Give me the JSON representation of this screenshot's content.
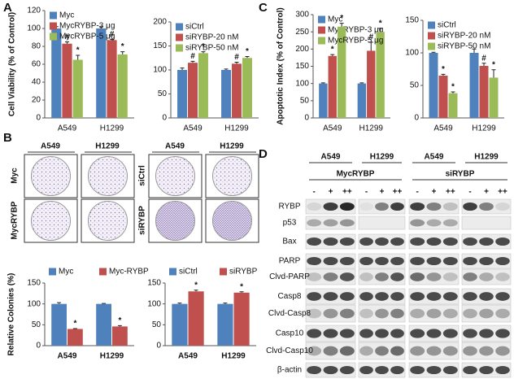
{
  "panel_labels": [
    "A",
    "B",
    "C",
    "D"
  ],
  "chart_data": [
    {
      "type": "bar",
      "ylabel": "Cell Viability (% of Control)",
      "categories": [
        "A549",
        "H1299"
      ],
      "series": [
        {
          "name": "Myc",
          "color": "#4f81bd",
          "values": [
            100,
            100
          ],
          "errors": [
            2,
            2
          ],
          "annotations": [
            null,
            null
          ]
        },
        {
          "name": "MycRYBP-3 μg",
          "color": "#c0504d",
          "values": [
            83,
            87
          ],
          "errors": [
            2,
            1
          ],
          "annotations": [
            "#",
            "#"
          ]
        },
        {
          "name": "MycRYBP-5 μg",
          "color": "#9bbb59",
          "values": [
            65,
            71
          ],
          "errors": [
            5,
            3
          ],
          "annotations": [
            "*",
            "*"
          ]
        }
      ],
      "ylim": [
        0,
        120
      ],
      "yticks": [
        0,
        20,
        40,
        60,
        80,
        100,
        120
      ],
      "legend": "upper left"
    },
    {
      "type": "bar",
      "categories": [
        "A549",
        "H1299"
      ],
      "series": [
        {
          "name": "siCtrl",
          "color": "#4f81bd",
          "values": [
            100,
            100
          ],
          "errors": [
            4,
            2
          ],
          "annotations": [
            null,
            null
          ]
        },
        {
          "name": "siRYBP-20 nM",
          "color": "#c0504d",
          "values": [
            115,
            113
          ],
          "errors": [
            3,
            3
          ],
          "annotations": [
            "#",
            "#"
          ]
        },
        {
          "name": "siRYBP-50 nM",
          "color": "#9bbb59",
          "values": [
            135,
            125
          ],
          "errors": [
            3,
            3
          ],
          "annotations": [
            "*",
            "*"
          ]
        }
      ],
      "ylim": [
        0,
        200
      ],
      "yticks": [
        0,
        50,
        100,
        150,
        200
      ],
      "legend": "upper left"
    },
    {
      "type": "bar",
      "ylabel": "Apoptotic Index (% of Control)",
      "categories": [
        "A549",
        "H1299"
      ],
      "series": [
        {
          "name": "Myc",
          "color": "#4f81bd",
          "values": [
            100,
            100
          ],
          "errors": [
            2,
            2
          ],
          "annotations": [
            null,
            null
          ]
        },
        {
          "name": "MycRYBP-3 μg",
          "color": "#c0504d",
          "values": [
            180,
            195
          ],
          "errors": [
            4,
            25
          ],
          "annotations": [
            "*",
            "#"
          ]
        },
        {
          "name": "MycRYBP-5 μg",
          "color": "#9bbb59",
          "values": [
            265,
            250
          ],
          "errors": [
            10,
            10
          ],
          "annotations": [
            "*",
            "*"
          ]
        }
      ],
      "ylim": [
        0,
        300
      ],
      "yticks": [
        0,
        50,
        100,
        150,
        200,
        250,
        300
      ],
      "legend": "upper left"
    },
    {
      "type": "bar",
      "categories": [
        "A549",
        "H1299"
      ],
      "series": [
        {
          "name": "siCtrl",
          "color": "#4f81bd",
          "values": [
            100,
            100
          ],
          "errors": [
            1,
            6
          ],
          "annotations": [
            null,
            null
          ]
        },
        {
          "name": "siRYBP-20 nM",
          "color": "#c0504d",
          "values": [
            65,
            80
          ],
          "errors": [
            2,
            4
          ],
          "annotations": [
            "*",
            "#"
          ]
        },
        {
          "name": "siRYBP-50 nM",
          "color": "#9bbb59",
          "values": [
            38,
            62
          ],
          "errors": [
            2,
            12
          ],
          "annotations": [
            "*",
            "*"
          ]
        }
      ],
      "ylim": [
        0,
        150
      ],
      "yticks": [
        0,
        50,
        100,
        150
      ],
      "legend": "upper left"
    },
    {
      "type": "bar",
      "ylabel": "Relative Colonies (%)",
      "categories": [
        "A549",
        "H1299"
      ],
      "series": [
        {
          "name": "Myc",
          "color": "#4f81bd",
          "values": [
            100,
            100
          ],
          "errors": [
            3,
            1
          ],
          "annotations": [
            null,
            null
          ]
        },
        {
          "name": "Myc-RYBP",
          "color": "#c0504d",
          "values": [
            40,
            46
          ],
          "errors": [
            1,
            2
          ],
          "annotations": [
            "*",
            "*"
          ]
        }
      ],
      "ylim": [
        0,
        150
      ],
      "yticks": [
        0,
        50,
        100,
        150
      ],
      "legend": "top"
    },
    {
      "type": "bar",
      "categories": [
        "A549",
        "H1299"
      ],
      "series": [
        {
          "name": "siCtrl",
          "color": "#4f81bd",
          "values": [
            100,
            100
          ],
          "errors": [
            2,
            2
          ],
          "annotations": [
            null,
            null
          ]
        },
        {
          "name": "siRYBP",
          "color": "#c0504d",
          "values": [
            130,
            127
          ],
          "errors": [
            3,
            2
          ],
          "annotations": [
            "*",
            "*"
          ]
        }
      ],
      "ylim": [
        0,
        150
      ],
      "yticks": [
        0,
        50,
        100,
        150
      ],
      "legend": "top"
    }
  ],
  "colony_assay": {
    "columns_left": [
      "A549",
      "H1299"
    ],
    "columns_right": [
      "A549",
      "H1299"
    ],
    "rows_left": [
      "Myc",
      "MycRYBP"
    ],
    "rows_right": [
      "siCtrl",
      "siRYBP"
    ]
  },
  "western_blot": {
    "cell_lines": [
      "A549",
      "H1299",
      "A549",
      "H1299"
    ],
    "groups": [
      "MycRYBP",
      "siRYBP"
    ],
    "lanes": [
      "-",
      "+",
      "++"
    ],
    "proteins": [
      "RYBP",
      "p53",
      "Bax",
      "PARP",
      "Clvd-PARP",
      "Casp8",
      "Clvd-Casp8",
      "Casp10",
      "Clvd-Casp10",
      "β-actin"
    ]
  }
}
